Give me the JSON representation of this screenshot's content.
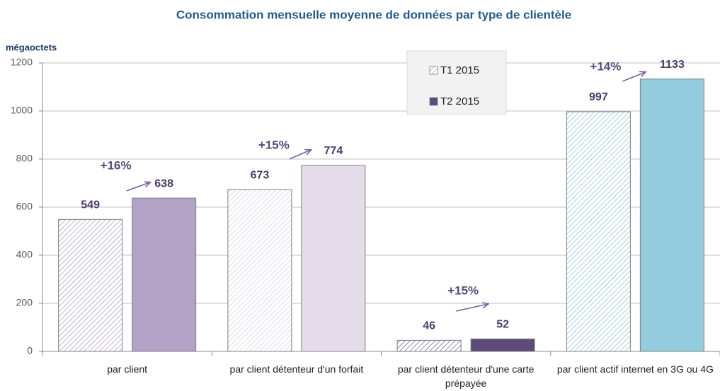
{
  "chart_data": {
    "type": "bar",
    "title": "Consommation mensuelle moyenne de données par type de clientèle",
    "ylabel": "mégaoctets",
    "categories": [
      "par client",
      "par client détenteur d'un forfait",
      "par client détenteur d'une carte prépayée",
      "par client actif internet en 3G ou 4G"
    ],
    "series": [
      {
        "name": "T1 2015",
        "color": "#a6a6a6",
        "pattern": "hatch",
        "bar_colors": [
          "#a594bd",
          "#d3cadf",
          "#6b5a8c",
          "#7fc3d6"
        ],
        "values": [
          549,
          673,
          46,
          997
        ]
      },
      {
        "name": "T2 2015",
        "color": "#5b4a7a",
        "bar_colors": [
          "#b1a2c6",
          "#e4dcea",
          "#5b4a7a",
          "#93cddd"
        ],
        "values": [
          638,
          774,
          52,
          1133
        ]
      }
    ],
    "annotations": [
      "+16%",
      "+15%",
      "+15%",
      "+14%"
    ],
    "ylim": [
      0,
      1200
    ],
    "yticks": [
      0,
      200,
      400,
      600,
      800,
      1000,
      1200
    ],
    "grid": true,
    "legend": "top-center"
  }
}
